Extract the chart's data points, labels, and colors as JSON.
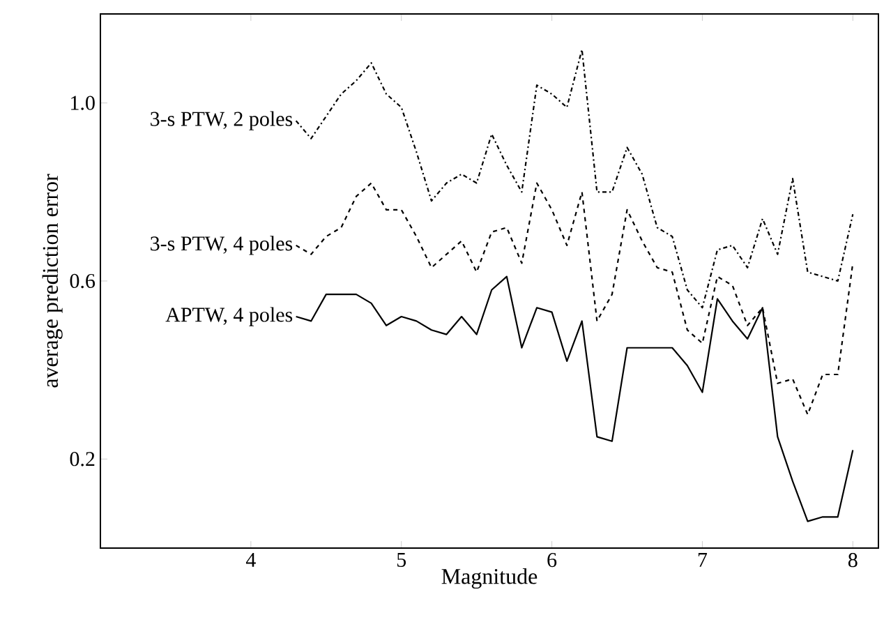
{
  "chart_data": {
    "type": "line",
    "xlabel": "Magnitude",
    "ylabel": "average prediction error",
    "x": [
      4.3,
      4.4,
      4.5,
      4.6,
      4.7,
      4.8,
      4.9,
      5.0,
      5.1,
      5.2,
      5.3,
      5.4,
      5.5,
      5.6,
      5.7,
      5.8,
      5.9,
      6.0,
      6.1,
      6.2,
      6.3,
      6.4,
      6.5,
      6.6,
      6.7,
      6.8,
      6.9,
      7.0,
      7.1,
      7.2,
      7.3,
      7.4,
      7.5,
      7.6,
      7.7,
      7.8,
      7.9,
      8.0
    ],
    "series": [
      {
        "name": "3-s PTW, 2 poles",
        "color": "#000000",
        "line_style": "dashdot",
        "values": [
          0.96,
          0.92,
          0.97,
          1.02,
          1.05,
          1.09,
          1.02,
          0.99,
          0.89,
          0.78,
          0.82,
          0.84,
          0.82,
          0.93,
          0.86,
          0.8,
          1.04,
          1.02,
          0.99,
          1.12,
          0.8,
          0.8,
          0.9,
          0.84,
          0.72,
          0.7,
          0.58,
          0.54,
          0.67,
          0.68,
          0.63,
          0.74,
          0.66,
          0.83,
          0.62,
          0.61,
          0.6,
          0.75
        ]
      },
      {
        "name": "3-s PTW, 4 poles",
        "color": "#000000",
        "line_style": "dashed",
        "values": [
          0.68,
          0.66,
          0.7,
          0.72,
          0.79,
          0.82,
          0.76,
          0.76,
          0.7,
          0.63,
          0.66,
          0.69,
          0.62,
          0.71,
          0.72,
          0.64,
          0.82,
          0.76,
          0.68,
          0.8,
          0.51,
          0.57,
          0.76,
          0.69,
          0.63,
          0.62,
          0.49,
          0.46,
          0.61,
          0.59,
          0.5,
          0.54,
          0.37,
          0.38,
          0.3,
          0.39,
          0.39,
          0.64
        ]
      },
      {
        "name": "APTW, 4 poles",
        "color": "#000000",
        "line_style": "solid",
        "values": [
          0.52,
          0.51,
          0.57,
          0.57,
          0.57,
          0.55,
          0.5,
          0.52,
          0.51,
          0.49,
          0.48,
          0.52,
          0.48,
          0.58,
          0.61,
          0.45,
          0.54,
          0.53,
          0.42,
          0.51,
          0.25,
          0.24,
          0.45,
          0.45,
          0.45,
          0.45,
          0.41,
          0.35,
          0.56,
          0.51,
          0.47,
          0.54,
          0.25,
          0.15,
          0.06,
          0.07,
          0.07,
          0.22
        ]
      }
    ],
    "xlim": [
      3,
      8.17
    ],
    "ylim": [
      0,
      1.2
    ],
    "xticks": [
      4,
      5,
      6,
      7,
      8
    ],
    "yticks": [
      0.2,
      0.6,
      {
        "value": 1,
        "label": "1.0"
      }
    ],
    "grid": false,
    "legend": false,
    "marker": "none"
  }
}
